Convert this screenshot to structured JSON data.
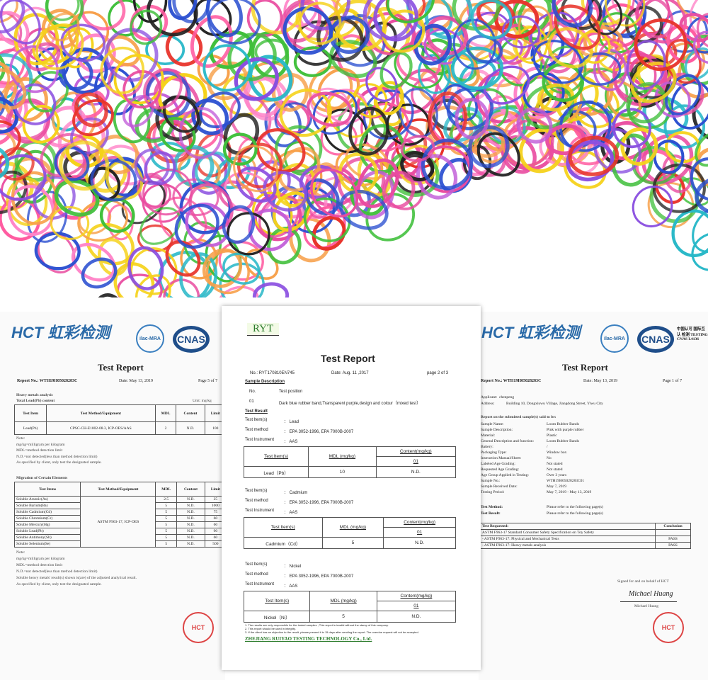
{
  "photo": {
    "colors": [
      "#f5d21a",
      "#e94ca0",
      "#2a4fd0",
      "#222222",
      "#c05ad8",
      "#ff5aa0",
      "#3fbf3a",
      "#e8332a",
      "#29b8c8",
      "#f7a04a",
      "#8a4fe0",
      "#ff85c8"
    ]
  },
  "left_doc": {
    "logo_text": "HCT 虹彩检测",
    "ilac": "ilac-MRA",
    "cnas": "CNAS",
    "cnas_sub": "中国认可 国际互认 检测 TESTING CNAS",
    "title": "Test Report",
    "report_no": "Report No.: WTH19H05028283C",
    "date": "Date: May 13, 2019",
    "page": "Page 5 of 7",
    "section1": "Heavy metals analysis",
    "section1b": "Total Lead(Pb) content",
    "unit": "Unit: mg/kg",
    "headers": [
      "Test Item",
      "Test Method/Equipment",
      "MDL",
      "Content",
      "Limit"
    ],
    "lead_row": [
      "Lead(Pb)",
      "CPSC-CH-E1002-08.3, ICP-OES/AAS",
      "2",
      "N.D.",
      "100"
    ],
    "note1": [
      "Note:",
      "mg/kg=milligram per kilogram",
      "MDL=method detection limit",
      "N.D.=not detected(less than method detection limit)",
      "As specified by client, only test the designated sample."
    ],
    "section2": "Migration of Certain Elements",
    "headers2": [
      "Test Items",
      "Test Method/Equipment",
      "MDL",
      "Content",
      "Limit"
    ],
    "method2": "ASTM F963-17, ICP-OES",
    "rows2": [
      [
        "Soluble Arsenic(As)",
        "2.5",
        "N.D.",
        "25"
      ],
      [
        "Soluble Barium(Ba)",
        "5",
        "N.D.",
        "1000"
      ],
      [
        "Soluble Cadmium(Cd)",
        "5",
        "N.D.",
        "75"
      ],
      [
        "Soluble Chromium(Cr)",
        "5",
        "N.D.",
        "60"
      ],
      [
        "Soluble Mercury(Hg)",
        "5",
        "N.D.",
        "60"
      ],
      [
        "Soluble Lead(Pb)",
        "5",
        "N.D.",
        "90"
      ],
      [
        "Soluble Antimony(Sb)",
        "5",
        "N.D.",
        "60"
      ],
      [
        "Soluble Selenium(Se)",
        "5",
        "N.D.",
        "500"
      ]
    ],
    "note2": [
      "Note:",
      "mg/kg=milligram per kilogram",
      "MDL=method detection limit",
      "N.D.=not detected(less than method detection limit)",
      "Soluble heavy metals' result(s) shown is(are) of the adjusted analytical result.",
      "As specified by client, only test the designated sample."
    ],
    "stamp": "HCT"
  },
  "center_doc": {
    "logo": "RYT",
    "title": "Test Report",
    "no": "No.: RYT170810EN745",
    "date": "Date: Aug. 11 ,2017",
    "page": "page 2 of 3",
    "sample_desc": "Sample Description",
    "no_label": "No.",
    "position_label": "Test position",
    "sample_no": "01",
    "sample_text": "Dark blue rubber band,Transparent purple,design and colour（mixed test）",
    "test_result": "Test Result",
    "labels": {
      "item": "Test Item(s)",
      "method": "Test method",
      "instrument": "Test Instrument"
    },
    "table_headers": {
      "item": "Test Item(s)",
      "mdl": "MDL (mg/kg)",
      "content": "Content(mg/kg)",
      "sample": "01"
    },
    "tests": [
      {
        "item": "： Lead",
        "method": "： EPA 3052-1996, EPA 7000B-2007",
        "instrument": "： AAS",
        "row_item": "Lead（Pb）",
        "mdl": "10",
        "content": "N.D."
      },
      {
        "item": "： Cadmium",
        "method": "： EPA 3052-1996, EPA 7000B-2007",
        "instrument": "： AAS",
        "row_item": "Cadmium（Cd）",
        "mdl": "5",
        "content": "N.D."
      },
      {
        "item": "： Nickel",
        "method": "： EPA 3052-1996, EPA 7000B-2007",
        "instrument": "： AAS",
        "row_item": "Nickel（Ni）",
        "mdl": "5",
        "content": "N.D."
      }
    ],
    "footnotes": [
      "1. The results are only responsible for the tested samples ; This report is invalid without the stamp of this company.",
      "2. This report should be used in integrity.",
      "3. If the client has an objection to the result, please present it in 15 days after sending the report. The overdue request will not be accepted."
    ],
    "company": "ZHEJIANG RUIYAO TESTING TECHNOLOGY Co., Ltd."
  },
  "right_doc": {
    "logo_text": "HCT 虹彩检测",
    "ilac": "ilac-MRA",
    "cnas": "CNAS",
    "cnas_sub": "中国认可 国际互认 检测 TESTING CNAS L4136",
    "title": "Test Report",
    "report_no": "Report No.: WTH19H05028283C",
    "date": "Date: May 13, 2019",
    "page": "Page 1 of 7",
    "applicant": [
      "Applicant:",
      "chenpeng"
    ],
    "address": [
      "Address:",
      "Building 10, Dongxiuwu Village, Jiangdong Street, Yiwu City"
    ],
    "report_on": "Report on the submitted sample(s) said to be:",
    "fields": [
      [
        "Sample Name:",
        "Loom Rubber Bands"
      ],
      [
        "Sample Description:",
        "Pink with purple rubber"
      ],
      [
        "Material:",
        "Plastic"
      ],
      [
        "General Description and function:",
        "Loom Rubber Bands"
      ],
      [
        "Battery:",
        "/"
      ],
      [
        "Packaging Type:",
        "Window box"
      ],
      [
        "Instruction Manual/Sheet:",
        "No"
      ],
      [
        "Labeled Age Grading:",
        "Not stated"
      ],
      [
        "Requested Age Grading:",
        "Not stated"
      ],
      [
        "Age Group Applied in Testing:",
        "Over 3 years"
      ],
      [
        "Sample No.:",
        "WTH19H05028283C01"
      ],
      [
        "Sample Received Date:",
        "May 7, 2019"
      ],
      [
        "Testing Period:",
        "May 7, 2019 - May 13, 2019"
      ]
    ],
    "method": [
      "Test Method:",
      "Please refer to the following page(s)"
    ],
    "result": [
      "Test Result:",
      "Please refer to the following page(s)"
    ],
    "req_headers": [
      "Test Requested:",
      "Conclusion"
    ],
    "req_rows": [
      [
        "ASTM F963-17 Standard Consumer Safety Specification on Toy Safety",
        ""
      ],
      [
        "- ASTM F963-17: Physical and Mechanical Tests",
        "PASS"
      ],
      [
        "- ASTM F963-17: Heavy metals analysis",
        "PASS"
      ]
    ],
    "signed": "Signed for and on behalf of HCT",
    "signature": "Michael Huang",
    "signer": "Michael Huang",
    "stamp": "HCT"
  }
}
